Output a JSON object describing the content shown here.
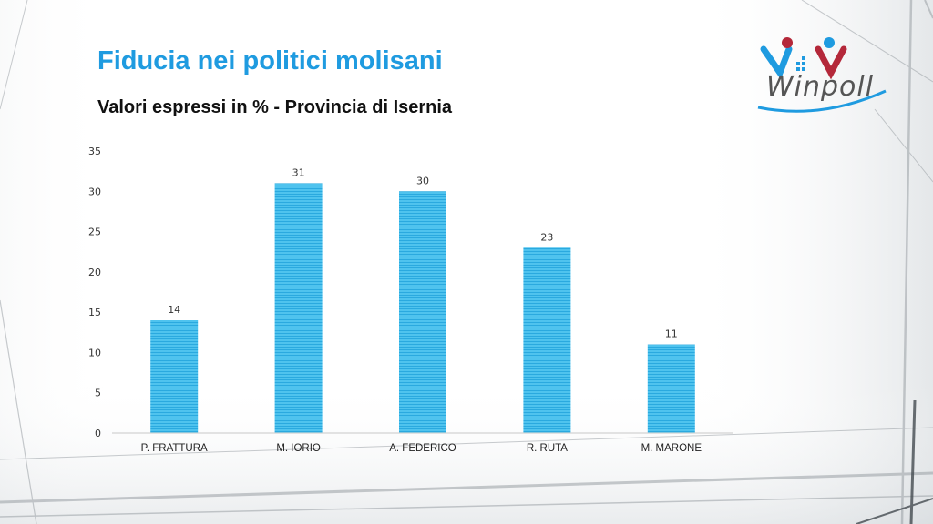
{
  "title": "Fiducia nei politici molisani",
  "subtitle": "Valori espressi in % - Provincia di Isernia",
  "logo": {
    "text": "Winpoll"
  },
  "colors": {
    "title": "#1f9be0",
    "bar": "#4fc3ee",
    "bar_stripe": "#2aa9df"
  },
  "chart_data": {
    "type": "bar",
    "title": "Fiducia nei politici molisani",
    "subtitle": "Valori espressi in % - Provincia di Isernia",
    "categories": [
      "P. FRATTURA",
      "M. IORIO",
      "A. FEDERICO",
      "R. RUTA",
      "M. MARONE"
    ],
    "values": [
      14,
      31,
      30,
      23,
      11
    ],
    "ylim": [
      0,
      35
    ],
    "yticks": [
      0,
      5,
      10,
      15,
      20,
      25,
      30,
      35
    ],
    "grid": false,
    "data_labels": true
  }
}
